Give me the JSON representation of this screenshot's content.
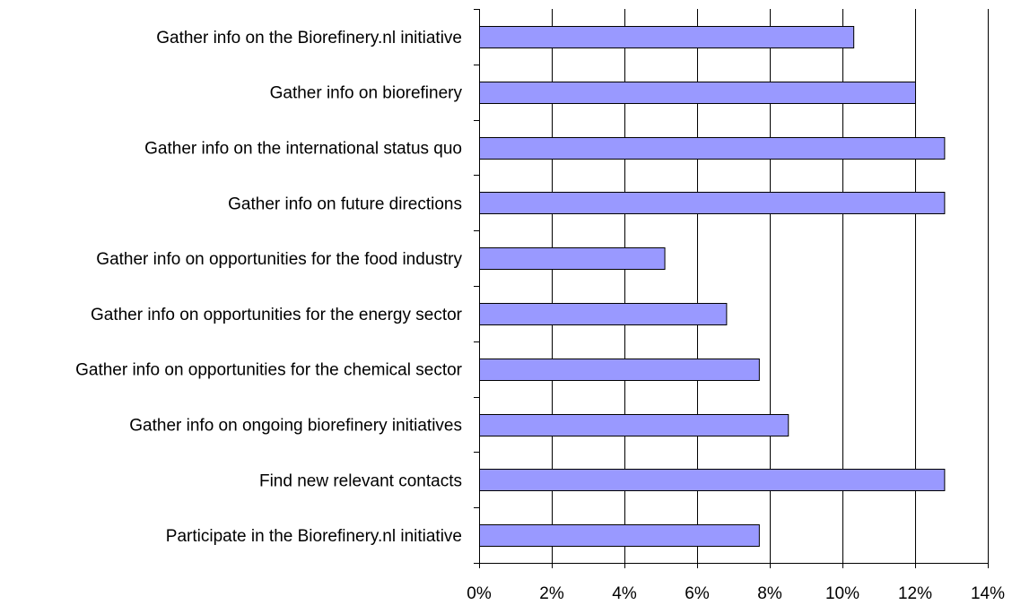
{
  "chart_data": {
    "type": "bar",
    "orientation": "horizontal",
    "categories": [
      "Gather info on the Biorefinery.nl initiative",
      "Gather info on biorefinery",
      "Gather info on the international status quo",
      "Gather info on future directions",
      "Gather info on opportunities for the food industry",
      "Gather info on opportunities for the energy sector",
      "Gather info on opportunities for the chemical sector",
      "Gather info on ongoing biorefinery initiatives",
      "Find new relevant contacts",
      "Participate in the Biorefinery.nl initiative"
    ],
    "values": [
      10.3,
      12.0,
      12.8,
      12.8,
      5.1,
      6.8,
      7.7,
      8.5,
      12.8,
      7.7
    ],
    "unit": "%",
    "xlim": [
      0,
      14
    ],
    "xticks": [
      0,
      2,
      4,
      6,
      8,
      10,
      12,
      14
    ],
    "xtick_labels": [
      "0%",
      "2%",
      "4%",
      "6%",
      "8%",
      "10%",
      "12%",
      "14%"
    ],
    "grid": true,
    "legend": "none",
    "bar_color": "#9999ff",
    "title": "",
    "xlabel": "",
    "ylabel": ""
  }
}
